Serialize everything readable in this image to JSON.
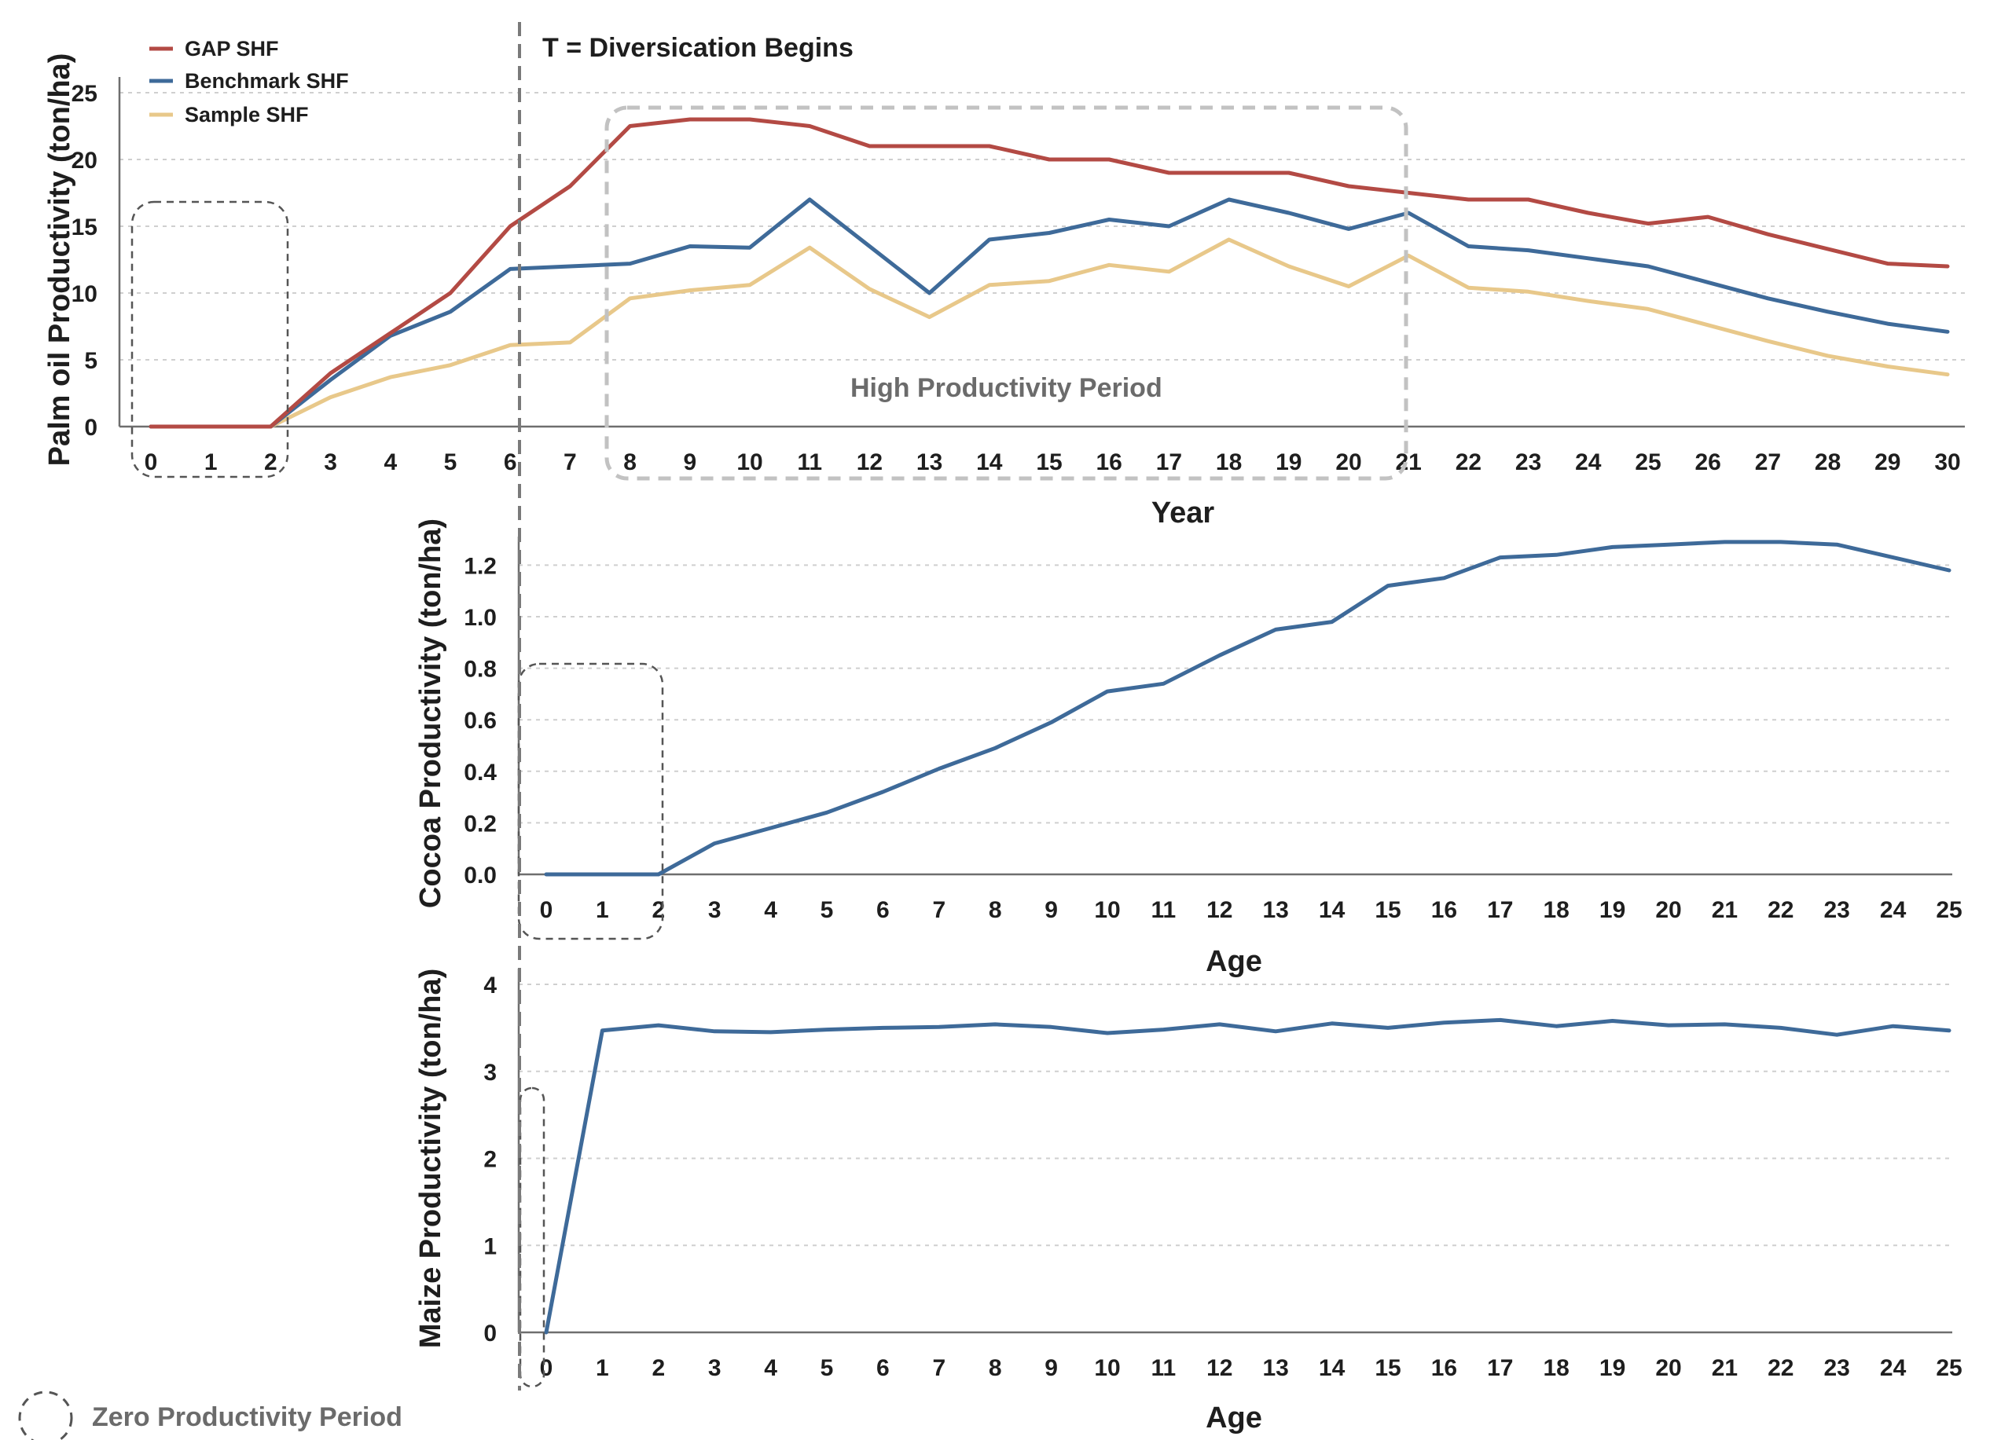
{
  "annotations": {
    "diversification": "T = Diversication Begins",
    "high_period": "High Productivity Period",
    "zero_period": "Zero Productivity Period"
  },
  "colors": {
    "gap": "#b34a44",
    "benchmark": "#3e6a99",
    "sample": "#e8c88a",
    "grid": "#cfcfcf",
    "box_dark": "#555555",
    "box_light": "#c2c2c2",
    "vline": "#7a7a7a"
  },
  "chart_data": [
    {
      "id": "palm",
      "type": "line",
      "xlabel": "Year",
      "ylabel": "Palm oil Productivity (ton/ha)",
      "x": [
        0,
        1,
        2,
        3,
        4,
        5,
        6,
        7,
        8,
        9,
        10,
        11,
        12,
        13,
        14,
        15,
        16,
        17,
        18,
        19,
        20,
        21,
        22,
        23,
        24,
        25,
        26,
        27,
        28,
        29,
        30
      ],
      "xlim": [
        0,
        30
      ],
      "ylim": [
        0,
        25
      ],
      "yticks": [
        "0",
        "5",
        "10",
        "15",
        "20",
        "25"
      ],
      "grid": true,
      "legend": "top-left",
      "series": [
        {
          "name": "GAP SHF",
          "color": "#b34a44",
          "values": [
            0,
            0,
            0,
            4,
            7,
            10,
            15,
            18,
            22.5,
            23,
            23,
            22.5,
            21,
            21,
            21,
            20,
            20,
            19,
            19,
            19,
            18,
            17.5,
            17,
            17,
            16,
            15.2,
            15.7,
            14.4,
            13.3,
            12.2,
            12
          ]
        },
        {
          "name": "Benchmark SHF",
          "color": "#3e6a99",
          "values": [
            0,
            0,
            0,
            3.5,
            6.8,
            8.6,
            11.8,
            12,
            12.2,
            13.5,
            13.4,
            17,
            13.5,
            10,
            14,
            14.5,
            15.5,
            15,
            17,
            16,
            14.8,
            16,
            13.5,
            13.2,
            12.6,
            12,
            10.8,
            9.6,
            8.6,
            7.7,
            7.1
          ]
        },
        {
          "name": "Sample SHF",
          "color": "#e8c88a",
          "values": [
            0,
            0,
            0,
            2.2,
            3.7,
            4.6,
            6.1,
            6.3,
            9.6,
            10.2,
            10.6,
            13.4,
            10.3,
            8.2,
            10.6,
            10.9,
            12.1,
            11.6,
            14,
            12,
            10.5,
            12.8,
            10.4,
            10.1,
            9.4,
            8.8,
            7.6,
            6.4,
            5.3,
            4.5,
            3.9
          ]
        }
      ]
    },
    {
      "id": "cocoa",
      "type": "line",
      "xlabel": "Age",
      "ylabel": "Cocoa Productivity (ton/ha)",
      "x": [
        0,
        1,
        2,
        3,
        4,
        5,
        6,
        7,
        8,
        9,
        10,
        11,
        12,
        13,
        14,
        15,
        16,
        17,
        18,
        19,
        20,
        21,
        22,
        23,
        24,
        25
      ],
      "xlim": [
        0,
        25
      ],
      "ylim": [
        0,
        1.25
      ],
      "yticks": [
        "0.0",
        "0.2",
        "0.4",
        "0.6",
        "0.8",
        "1.0",
        "1.2"
      ],
      "grid": true,
      "series": [
        {
          "color": "#3e6a99",
          "values": [
            0,
            0,
            0,
            0.12,
            0.18,
            0.24,
            0.32,
            0.41,
            0.49,
            0.59,
            0.71,
            0.74,
            0.85,
            0.95,
            0.98,
            1.12,
            1.15,
            1.23,
            1.24,
            1.27,
            1.28,
            1.29,
            1.29,
            1.28,
            1.23,
            1.18
          ]
        }
      ]
    },
    {
      "id": "maize",
      "type": "line",
      "xlabel": "Age",
      "ylabel": "Maize Productivity (ton/ha)",
      "x": [
        0,
        1,
        2,
        3,
        4,
        5,
        6,
        7,
        8,
        9,
        10,
        11,
        12,
        13,
        14,
        15,
        16,
        17,
        18,
        19,
        20,
        21,
        22,
        23,
        24,
        25
      ],
      "xlim": [
        0,
        25
      ],
      "ylim": [
        0,
        4
      ],
      "yticks": [
        "0",
        "1",
        "2",
        "3",
        "4"
      ],
      "grid": true,
      "series": [
        {
          "color": "#3e6a99",
          "values": [
            0,
            3.47,
            3.53,
            3.46,
            3.45,
            3.48,
            3.5,
            3.51,
            3.54,
            3.51,
            3.44,
            3.48,
            3.54,
            3.46,
            3.55,
            3.5,
            3.56,
            3.59,
            3.52,
            3.58,
            3.53,
            3.54,
            3.5,
            3.42,
            3.52,
            3.47
          ]
        }
      ]
    }
  ]
}
